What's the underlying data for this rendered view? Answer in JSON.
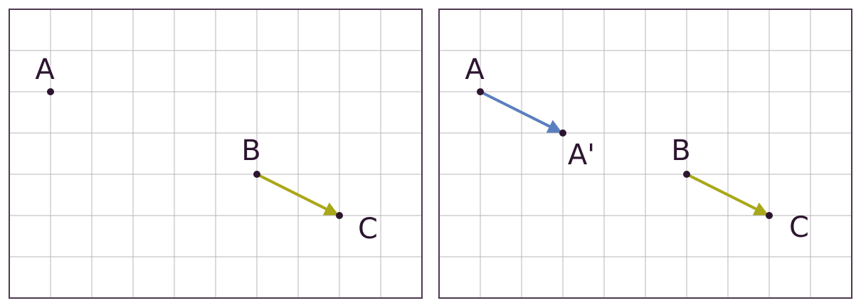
{
  "grid": {
    "cols": 10,
    "rows": 7
  },
  "colors": {
    "frame": "#4d3a4f",
    "grid": "#b9b4bb",
    "point": "#2d1530",
    "label": "#2d1530",
    "vector_bc": "#a8a819",
    "vector_aa": "#5a7fbf"
  },
  "panels": [
    {
      "points": [
        {
          "id": "A",
          "label": "A",
          "gx": 1,
          "gy": 2
        },
        {
          "id": "B",
          "label": "B",
          "gx": 6,
          "gy": 4
        },
        {
          "id": "C",
          "label": "C",
          "gx": 8,
          "gy": 5
        }
      ],
      "vectors": [
        {
          "from": "B",
          "to": "C",
          "color_key": "vector_bc"
        }
      ]
    },
    {
      "points": [
        {
          "id": "A",
          "label": "A",
          "gx": 1,
          "gy": 2
        },
        {
          "id": "A2",
          "label": "A'",
          "gx": 3,
          "gy": 3
        },
        {
          "id": "B",
          "label": "B",
          "gx": 6,
          "gy": 4
        },
        {
          "id": "C",
          "label": "C",
          "gx": 8,
          "gy": 5
        }
      ],
      "vectors": [
        {
          "from": "A",
          "to": "A2",
          "color_key": "vector_aa"
        },
        {
          "from": "B",
          "to": "C",
          "color_key": "vector_bc"
        }
      ]
    }
  ]
}
